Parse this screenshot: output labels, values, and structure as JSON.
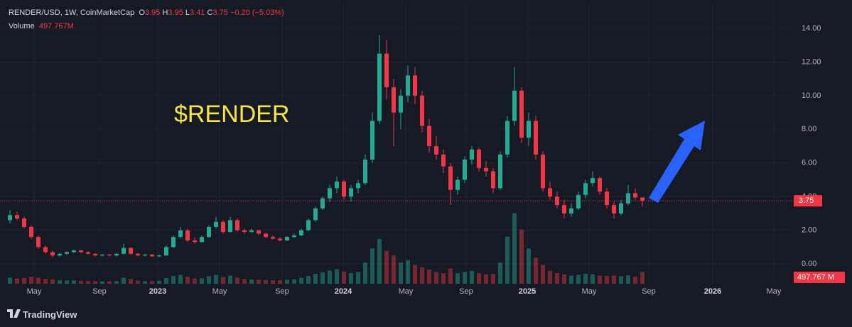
{
  "header": {
    "symbol": "RENDER/USD, 1W, CoinMarketCap",
    "ohlc": [
      {
        "label": "O",
        "value": "3.95"
      },
      {
        "label": "H",
        "value": "3.95"
      },
      {
        "label": "L",
        "value": "3.41"
      },
      {
        "label": "C",
        "value": "3.75"
      }
    ],
    "change": "−0.20 (−5.03%)",
    "volume_label": "Volume",
    "volume_value": "497.767M"
  },
  "chart_data": {
    "type": "candlestick",
    "annotation": "$RENDER",
    "up_color": "#22ab94",
    "down_color": "#f23645",
    "grid": true,
    "xlim": [
      -1.4,
      110.1
    ],
    "xticks": [
      {
        "value": 3.4,
        "label": "May"
      },
      {
        "value": 12.6,
        "label": "Sep"
      },
      {
        "value": 20.8,
        "label": "2023"
      },
      {
        "value": 29.5,
        "label": "May"
      },
      {
        "value": 38.3,
        "label": "Sep"
      },
      {
        "value": 46.9,
        "label": "2024"
      },
      {
        "value": 55.7,
        "label": "May"
      },
      {
        "value": 64.2,
        "label": "Sep"
      },
      {
        "value": 72.8,
        "label": "2025"
      },
      {
        "value": 81.5,
        "label": "May"
      },
      {
        "value": 89.9,
        "label": "Sep"
      },
      {
        "value": 98.9,
        "label": "2026"
      },
      {
        "value": 107.5,
        "label": "May"
      }
    ],
    "ylim": [
      -0.84,
      15.6
    ],
    "yticks": [
      {
        "value": 0,
        "label": "0.00"
      },
      {
        "value": 2,
        "label": "2.00"
      },
      {
        "value": 4,
        "label": "4.00"
      },
      {
        "value": 6,
        "label": "6.00"
      },
      {
        "value": 8,
        "label": "8.00"
      },
      {
        "value": 10,
        "label": "10.00"
      },
      {
        "value": 12,
        "label": "12.00"
      },
      {
        "value": 14,
        "label": "14.00"
      }
    ],
    "vlim": [
      0,
      12000
    ],
    "open": [
      2.6,
      2.9,
      2.7,
      2.2,
      1.6,
      1.0,
      0.7,
      0.5,
      0.6,
      0.7,
      0.8,
      0.7,
      0.6,
      0.5,
      0.55,
      0.5,
      0.6,
      0.95,
      0.6,
      0.5,
      0.55,
      0.45,
      0.5,
      1.0,
      1.6,
      2.0,
      1.4,
      1.3,
      1.6,
      2.2,
      2.5,
      1.9,
      2.6,
      2.0,
      1.9,
      2.0,
      1.8,
      1.6,
      1.5,
      1.4,
      1.6,
      1.7,
      2.0,
      2.6,
      3.3,
      3.9,
      4.5,
      4.9,
      4.0,
      4.5,
      4.8,
      6.2,
      8.5,
      12.5,
      10.5,
      9.0,
      10.0,
      11.2,
      10.0,
      8.2,
      7.0,
      6.5,
      5.8,
      4.4,
      5.0,
      6.2,
      6.8,
      5.7,
      5.5,
      4.5,
      6.5,
      8.5,
      10.3,
      7.5,
      8.5,
      6.5,
      4.5,
      4.0,
      3.5,
      3.0,
      3.3,
      4.1,
      4.8,
      5.1,
      4.3,
      3.5,
      3.0,
      3.6,
      4.2,
      3.95
    ],
    "high": [
      3.2,
      3.1,
      2.8,
      2.3,
      1.7,
      1.1,
      0.8,
      0.65,
      0.75,
      0.85,
      0.85,
      0.75,
      0.65,
      0.6,
      0.6,
      0.65,
      1.2,
      1.0,
      0.65,
      0.6,
      0.6,
      0.55,
      1.1,
      1.7,
      2.2,
      2.1,
      1.6,
      1.7,
      2.3,
      2.8,
      2.6,
      2.8,
      2.7,
      2.1,
      2.1,
      2.05,
      1.85,
      1.7,
      1.6,
      1.65,
      1.8,
      2.1,
      2.7,
      3.4,
      4.0,
      4.7,
      5.2,
      5.0,
      4.7,
      5.0,
      6.5,
      9.0,
      13.6,
      13.3,
      11.0,
      10.4,
      11.8,
      11.7,
      10.3,
      8.6,
      7.6,
      6.8,
      6.0,
      5.2,
      6.4,
      7.0,
      6.9,
      6.1,
      5.7,
      6.7,
      8.8,
      11.7,
      10.5,
      9.0,
      8.8,
      6.7,
      4.9,
      4.3,
      3.8,
      3.6,
      4.3,
      5.0,
      5.5,
      5.2,
      4.5,
      3.7,
      3.8,
      4.7,
      4.5,
      3.95
    ],
    "low": [
      2.4,
      2.6,
      2.1,
      1.5,
      0.9,
      0.6,
      0.4,
      0.45,
      0.55,
      0.65,
      0.65,
      0.55,
      0.45,
      0.45,
      0.45,
      0.45,
      0.55,
      0.55,
      0.45,
      0.45,
      0.4,
      0.4,
      0.48,
      0.95,
      1.5,
      1.3,
      1.2,
      1.25,
      1.55,
      2.1,
      1.8,
      1.85,
      1.9,
      1.8,
      1.85,
      1.7,
      1.55,
      1.45,
      1.35,
      1.35,
      1.55,
      1.65,
      1.95,
      2.5,
      3.2,
      3.7,
      4.2,
      3.8,
      3.7,
      4.2,
      4.7,
      6.0,
      8.3,
      9.8,
      7.0,
      8.0,
      9.6,
      9.5,
      7.8,
      6.6,
      6.2,
      5.4,
      3.5,
      4.1,
      4.8,
      5.9,
      5.5,
      5.2,
      4.2,
      4.4,
      6.3,
      8.2,
      7.2,
      7.0,
      6.2,
      4.3,
      3.8,
      3.3,
      2.7,
      2.8,
      3.2,
      3.9,
      4.6,
      4.1,
      3.3,
      2.7,
      2.9,
      3.5,
      3.8,
      3.41
    ],
    "close": [
      2.9,
      2.7,
      2.2,
      1.6,
      1.0,
      0.7,
      0.5,
      0.6,
      0.7,
      0.8,
      0.7,
      0.6,
      0.5,
      0.55,
      0.5,
      0.6,
      0.95,
      0.6,
      0.5,
      0.55,
      0.45,
      0.5,
      1.0,
      1.6,
      2.0,
      1.4,
      1.3,
      1.6,
      2.2,
      2.5,
      1.9,
      2.6,
      2.0,
      1.9,
      2.0,
      1.8,
      1.6,
      1.5,
      1.4,
      1.6,
      1.7,
      2.0,
      2.6,
      3.3,
      3.9,
      4.5,
      4.9,
      4.0,
      4.5,
      4.8,
      6.2,
      8.5,
      12.5,
      10.5,
      9.0,
      10.0,
      11.2,
      10.0,
      8.2,
      7.0,
      6.5,
      5.8,
      4.4,
      5.0,
      6.2,
      6.8,
      5.7,
      5.5,
      4.5,
      6.5,
      8.5,
      10.3,
      7.5,
      8.5,
      6.5,
      4.5,
      4.0,
      3.5,
      3.0,
      3.3,
      4.1,
      4.8,
      5.1,
      4.3,
      3.5,
      3.0,
      3.6,
      4.2,
      3.95,
      3.75
    ],
    "volume": [
      260,
      220,
      240,
      300,
      260,
      200,
      180,
      150,
      140,
      140,
      120,
      110,
      110,
      100,
      100,
      110,
      260,
      200,
      130,
      110,
      110,
      120,
      240,
      330,
      380,
      300,
      220,
      230,
      320,
      380,
      280,
      350,
      260,
      200,
      180,
      170,
      160,
      150,
      150,
      170,
      190,
      250,
      330,
      420,
      480,
      560,
      620,
      520,
      450,
      500,
      900,
      1500,
      1900,
      1400,
      1200,
      900,
      1000,
      800,
      700,
      600,
      500,
      450,
      650,
      450,
      500,
      550,
      450,
      400,
      420,
      900,
      2000,
      3000,
      2300,
      1500,
      1100,
      800,
      550,
      450,
      400,
      350,
      380,
      420,
      400,
      350,
      330,
      350,
      320,
      360,
      300,
      497.767
    ],
    "volume_tag": "497.767 M"
  },
  "footer": {
    "brand": "TradingView"
  }
}
